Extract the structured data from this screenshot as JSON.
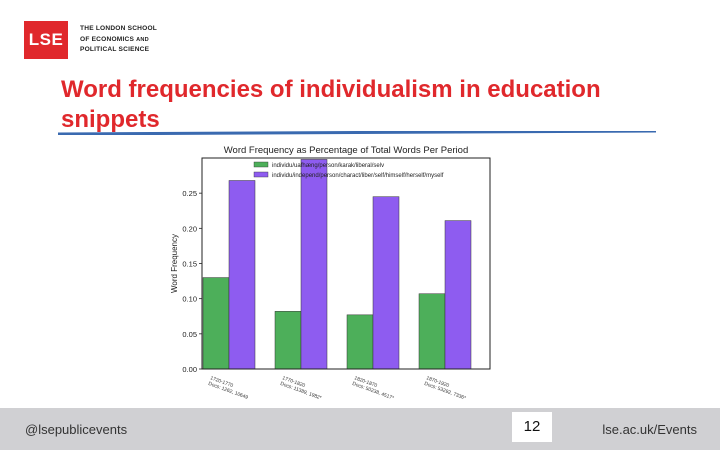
{
  "header": {
    "logo_mark": "LSE",
    "logo_lines": [
      "THE LONDON SCHOOL",
      "OF ECONOMICS",
      "AND",
      "POLITICAL SCIENCE"
    ]
  },
  "slide": {
    "title": "Word frequencies of individualism in education snippets"
  },
  "colors": {
    "brand_red": "#e0282c",
    "rule_blue": "#3a6ab0",
    "series_green": "#4daf5a",
    "series_purple": "#8e5cf0",
    "footer_gray": "#d0d0d3"
  },
  "footer": {
    "handle": "@lsepublicevents",
    "page_number": "12",
    "url": "lse.ac.uk/Events"
  },
  "chart_data": {
    "type": "bar",
    "title": "Word Frequency as Percentage of Total Words Per Period",
    "ylabel": "Word Frequency",
    "xlabel": "",
    "ylim": [
      0,
      0.3
    ],
    "yticks": [
      "0.00",
      "0.05",
      "0.10",
      "0.15",
      "0.20",
      "0.25"
    ],
    "yticks_values": [
      0,
      0.05,
      0.1,
      0.15,
      0.2,
      0.25
    ],
    "legend_placement": "top",
    "categories": [
      [
        "1720-1770",
        "Docs: 1262, 10649"
      ],
      [
        "1770-1820",
        "Docs: 11389, 1982*"
      ],
      [
        "1820-1870",
        "Docs: 50238, 4517*"
      ],
      [
        "1870-1920",
        "Docs: 53292, 7336*"
      ]
    ],
    "series": [
      {
        "name": "individu/uafhæng/person/karak/liberal/selv",
        "color": "#4daf5a",
        "values": [
          0.13,
          0.082,
          0.077,
          0.107
        ]
      },
      {
        "name": "individu/independ/person/charact/liber/self/himself/herself/myself",
        "color": "#8e5cf0",
        "values": [
          0.268,
          0.298,
          0.245,
          0.211
        ]
      }
    ]
  }
}
